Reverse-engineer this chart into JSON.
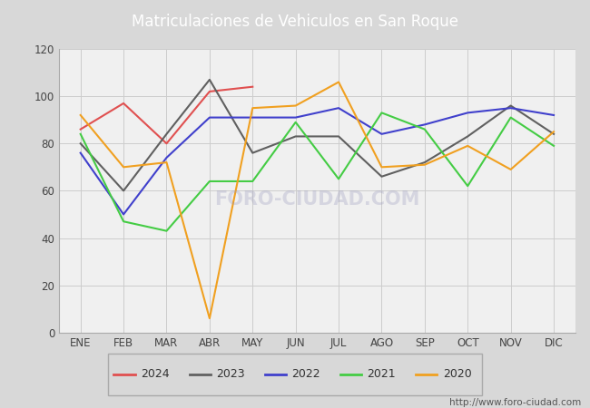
{
  "title": "Matriculaciones de Vehiculos en San Roque",
  "title_bg_color": "#4a86c8",
  "title_text_color": "#ffffff",
  "bg_color": "#d8d8d8",
  "plot_bg_color": "#f0f0f0",
  "months": [
    "ENE",
    "FEB",
    "MAR",
    "ABR",
    "MAY",
    "JUN",
    "JUL",
    "AGO",
    "SEP",
    "OCT",
    "NOV",
    "DIC"
  ],
  "series": {
    "2024": {
      "color": "#e05050",
      "data": [
        86,
        97,
        80,
        102,
        104,
        null,
        null,
        null,
        null,
        null,
        null,
        null
      ]
    },
    "2023": {
      "color": "#606060",
      "data": [
        80,
        60,
        84,
        107,
        76,
        83,
        83,
        66,
        72,
        83,
        96,
        84
      ]
    },
    "2022": {
      "color": "#4040cc",
      "data": [
        76,
        50,
        74,
        91,
        91,
        91,
        95,
        84,
        88,
        93,
        95,
        92
      ]
    },
    "2021": {
      "color": "#44cc44",
      "data": [
        84,
        47,
        43,
        64,
        64,
        89,
        65,
        93,
        86,
        62,
        91,
        79
      ]
    },
    "2020": {
      "color": "#f0a020",
      "data": [
        92,
        70,
        72,
        6,
        95,
        96,
        106,
        70,
        71,
        79,
        69,
        85
      ]
    }
  },
  "ylim": [
    0,
    120
  ],
  "yticks": [
    0,
    20,
    40,
    60,
    80,
    100,
    120
  ],
  "watermark": "http://www.foro-ciudad.com",
  "legend_years": [
    "2024",
    "2023",
    "2022",
    "2021",
    "2020"
  ]
}
